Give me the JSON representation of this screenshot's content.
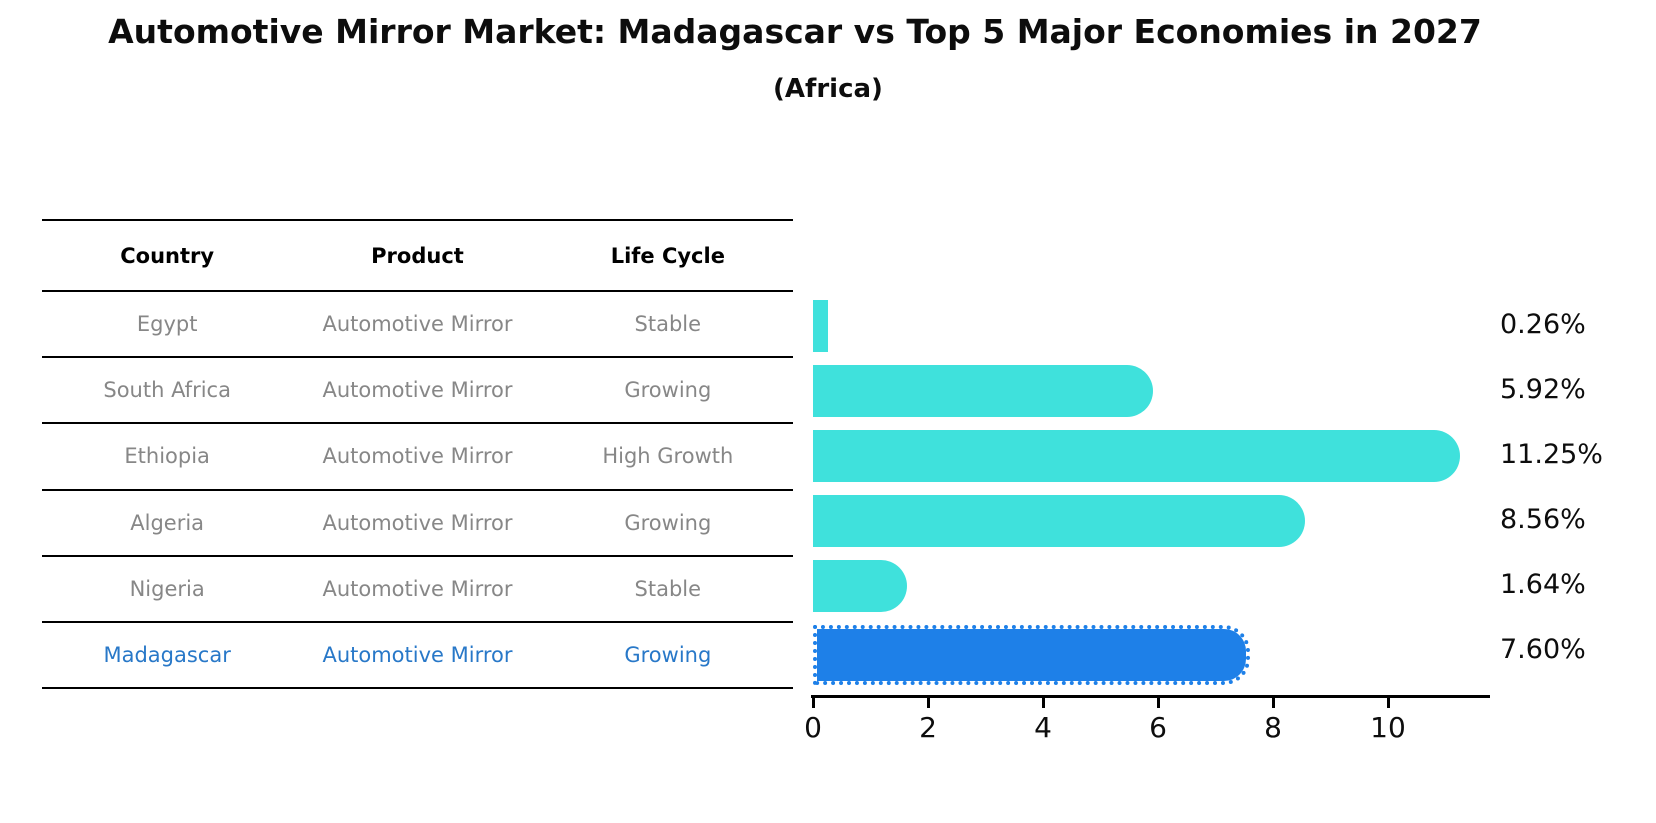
{
  "title": "Automotive Mirror Market: Madagascar vs Top 5 Major Economies in 2027",
  "subtitle": "(Africa)",
  "table": {
    "headers": [
      "Country",
      "Product",
      "Life Cycle"
    ],
    "rows": [
      {
        "country": "Egypt",
        "product": "Automotive Mirror",
        "life_cycle": "Stable",
        "highlight": false
      },
      {
        "country": "South Africa",
        "product": "Automotive Mirror",
        "life_cycle": "Growing",
        "highlight": false
      },
      {
        "country": "Ethiopia",
        "product": "Automotive Mirror",
        "life_cycle": "High Growth",
        "highlight": false
      },
      {
        "country": "Algeria",
        "product": "Automotive Mirror",
        "life_cycle": "Growing",
        "highlight": false
      },
      {
        "country": "Nigeria",
        "product": "Automotive Mirror",
        "life_cycle": "Stable",
        "highlight": false
      },
      {
        "country": "Madagascar",
        "product": "Automotive Mirror",
        "life_cycle": "Growing",
        "highlight": true
      }
    ]
  },
  "chart_data": {
    "type": "bar",
    "orientation": "horizontal",
    "title": "Automotive Mirror Market: Madagascar vs Top 5 Major Economies in 2027",
    "subtitle": "(Africa)",
    "categories": [
      "Egypt",
      "South Africa",
      "Ethiopia",
      "Algeria",
      "Nigeria",
      "Madagascar"
    ],
    "values": [
      0.26,
      5.92,
      11.25,
      8.56,
      1.64,
      7.6
    ],
    "value_labels": [
      "0.26%",
      "5.92%",
      "11.25%",
      "8.56%",
      "1.64%",
      "7.60%"
    ],
    "x_ticks": [
      "0",
      "2",
      "4",
      "6",
      "8",
      "10"
    ],
    "xlim": [
      0,
      11.8
    ],
    "grid": false,
    "legend": "none",
    "bar_color": "#3FE1DC",
    "highlight_bar_color": "#1E80E8",
    "highlight_index": 5,
    "highlight_text_color": "#2878C8",
    "table_text_color": "#878787"
  }
}
